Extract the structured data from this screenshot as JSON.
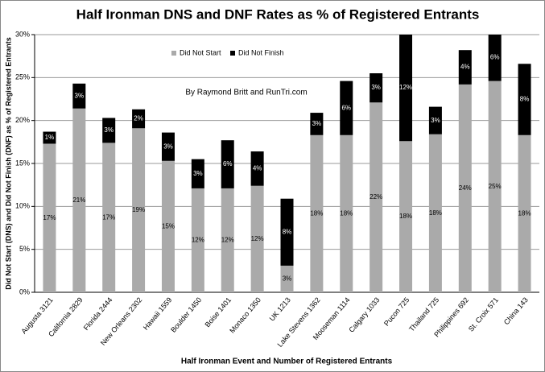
{
  "chart_data": {
    "type": "stacked_bar",
    "title": "Half Ironman DNS and DNF Rates as % of Registered Entrants",
    "annotation": "By Raymond Britt and RunTri.com",
    "x_label": "Half Ironman Event and Number of Registered Entrants",
    "y_label": "Did Not Start (DNS) and Did Not Finish (DNF) as % of Registered Entrants",
    "categories": [
      "Augusta 3121",
      "California 2829",
      "Florida 2444",
      "New Orleans 2302",
      "Hawaii 1559",
      "Boulder 1450",
      "Boise 1401",
      "Monaco 1350",
      "UK 1213",
      "Lake Stevens 1362",
      "Mooseman 1114",
      "Calgary 1033",
      "Pucon 725",
      "Thailand 725",
      "Philippines 692",
      "St. Croix 571",
      "China 143"
    ],
    "series": [
      {
        "name": "Did Not Start",
        "color": "#aaaaaa",
        "values": [
          17.3,
          21.4,
          17.4,
          19.1,
          15.3,
          12.1,
          12.1,
          12.4,
          3.1,
          18.3,
          18.3,
          22.1,
          17.6,
          18.4,
          24.2,
          24.6,
          18.3
        ],
        "value_labels": [
          "17%",
          "21%",
          "17%",
          "19%",
          "15%",
          "12%",
          "12%",
          "12%",
          "3%",
          "18%",
          "18%",
          "22%",
          "18%",
          "18%",
          "24%",
          "25%",
          "18%"
        ]
      },
      {
        "name": "Did Not Finish",
        "color": "#000000",
        "values": [
          1.4,
          2.9,
          2.9,
          2.2,
          3.3,
          3.4,
          5.6,
          4.0,
          7.8,
          2.6,
          6.3,
          3.4,
          12.4,
          3.2,
          4.0,
          5.5,
          8.3
        ],
        "value_labels": [
          "1%",
          "3%",
          "3%",
          "2%",
          "3%",
          "3%",
          "6%",
          "4%",
          "8%",
          "3%",
          "6%",
          "3%",
          "12%",
          "3%",
          "4%",
          "6%",
          "8%"
        ]
      }
    ],
    "ylim": [
      0,
      30
    ],
    "yticks": [
      {
        "value": 0,
        "label": "0%"
      },
      {
        "value": 5,
        "label": "5%"
      },
      {
        "value": 10,
        "label": "10%"
      },
      {
        "value": 15,
        "label": "15%"
      },
      {
        "value": 20,
        "label": "20%"
      },
      {
        "value": 25,
        "label": "25%"
      },
      {
        "value": 30,
        "label": "30%"
      }
    ],
    "grid": true,
    "legend": "upper-left"
  }
}
